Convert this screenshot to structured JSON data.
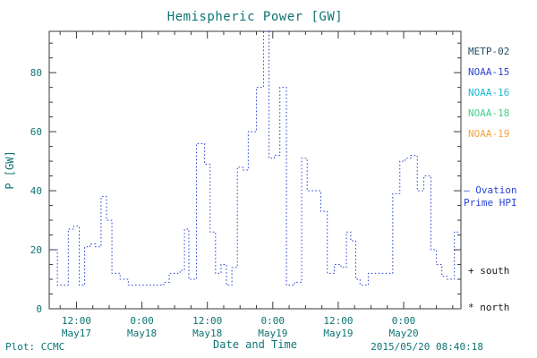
{
  "colors": {
    "background": "#ffffff",
    "text": "#0e7474",
    "axis": "#3a3a3a",
    "line": "#2b44d4",
    "black": "#1a1a1a"
  },
  "chart_data": {
    "type": "line",
    "title": "Hemispheric Power [GW]",
    "xlabel": "Date and Time",
    "ylabel": "P [GW]",
    "xlim": [
      0,
      75.5
    ],
    "ylim": [
      0,
      94
    ],
    "x_hours_origin": "May17 07:00",
    "x_minor_step": 3,
    "y_minor_step": 5,
    "y_ticks": [
      0,
      20,
      40,
      60,
      80
    ],
    "x_ticks": [
      {
        "hour": 5,
        "time": "12:00",
        "date": "May17"
      },
      {
        "hour": 17,
        "time": "0:00",
        "date": "May18"
      },
      {
        "hour": 29,
        "time": "12:00",
        "date": "May18"
      },
      {
        "hour": 41,
        "time": "0:00",
        "date": "May19"
      },
      {
        "hour": 53,
        "time": "12:00",
        "date": "May19"
      },
      {
        "hour": 65,
        "time": "0:00",
        "date": "May20"
      }
    ],
    "grid": false,
    "legend_position": "right",
    "series": [
      {
        "name": "Ovation Prime HPI",
        "color": "#2b44d4",
        "line_style": "dotted-step",
        "x": [
          0,
          1.5,
          2.5,
          3.5,
          4.5,
          5.5,
          6.5,
          7.5,
          8.5,
          9.5,
          10.5,
          11.5,
          13,
          14.5,
          16,
          18,
          20,
          21,
          22,
          23,
          24,
          24.8,
          25.6,
          27,
          28.5,
          29.5,
          30.5,
          31.5,
          32.5,
          33.5,
          34.5,
          35.5,
          36.5,
          38,
          39.3,
          40.3,
          41.3,
          42.3,
          43.5,
          45,
          46.3,
          47.3,
          48.5,
          49.8,
          51,
          52.3,
          53.5,
          54.5,
          55.3,
          56.2,
          57,
          58.5,
          60,
          61.5,
          63,
          64.3,
          65.3,
          66.3,
          67.5,
          68.7,
          70,
          71,
          72,
          73,
          74.3
        ],
        "y": [
          20,
          8,
          8,
          27,
          28,
          8,
          21,
          22,
          21,
          38,
          30,
          12,
          10,
          8,
          8,
          8,
          8,
          9,
          12,
          12,
          13,
          27,
          10,
          56,
          49,
          26,
          12,
          15,
          8,
          14,
          48,
          47,
          60,
          75,
          94,
          51,
          52,
          75,
          8,
          9,
          51,
          40,
          40,
          33,
          12,
          15,
          14,
          26,
          23,
          10,
          8,
          12,
          12,
          12,
          39,
          50,
          51,
          52,
          40,
          45,
          20,
          15,
          11,
          10,
          26
        ]
      }
    ]
  },
  "legend": {
    "satellites": [
      {
        "label": "METP-02",
        "color": "#274e63"
      },
      {
        "label": "NOAA-15",
        "color": "#2b44d4"
      },
      {
        "label": "NOAA-16",
        "color": "#19b8d8"
      },
      {
        "label": "NOAA-18",
        "color": "#46cf8c"
      },
      {
        "label": "NOAA-19",
        "color": "#f5a342"
      }
    ],
    "ovation": {
      "line1": "— Ovation",
      "line2": "Prime HPI"
    },
    "south": "+ south",
    "north": "* north"
  },
  "footer": {
    "left": "Plot: CCMC",
    "right": "2015/05/20 08:40:18"
  }
}
